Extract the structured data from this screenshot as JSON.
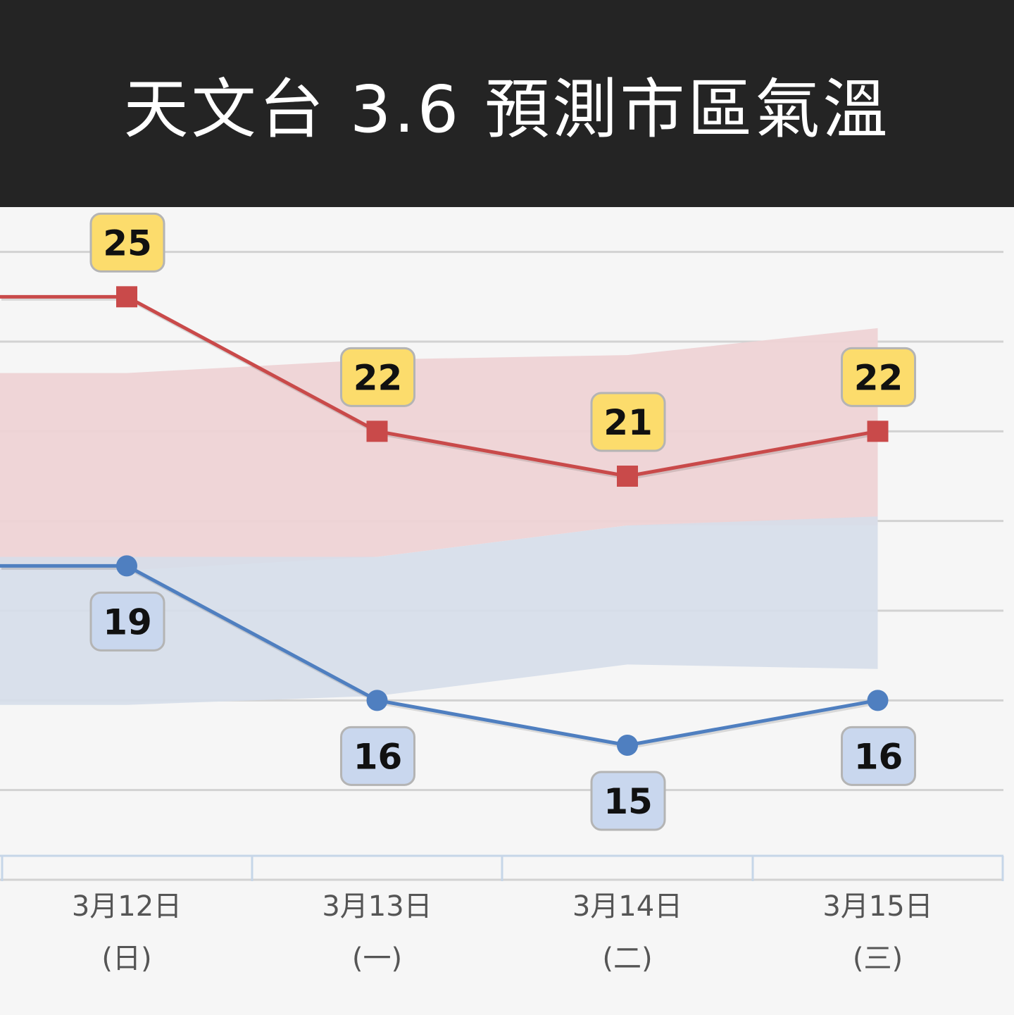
{
  "title": "天文台 3.6 預測市區氣溫",
  "colors": {
    "header_bg": "#242424",
    "max_line": "#c94a4a",
    "min_line": "#4f7fc0",
    "max_band": "#eed3d5",
    "min_band": "#d6deea",
    "max_label_bg": "#fcdc6c",
    "min_label_bg": "#c9d7ee"
  },
  "chart_data": {
    "type": "line",
    "categories": [
      "3月12日",
      "3月13日",
      "3月14日",
      "3月15日"
    ],
    "weekdays": [
      "(日)",
      "(一)",
      "(二)",
      "(三)"
    ],
    "series": [
      {
        "values": [
          25,
          22,
          21,
          22
        ],
        "marker": "square",
        "color": "#c94a4a"
      },
      {
        "values": [
          19,
          16,
          15,
          16
        ],
        "marker": "circle",
        "color": "#4f7fc0"
      }
    ],
    "bands": [
      {
        "upper": [
          23.3,
          23.6,
          23.7,
          24.3
        ],
        "lower": [
          18.9,
          19.2,
          19.9,
          19.9
        ]
      },
      {
        "upper": [
          19.2,
          19.2,
          19.9,
          20.1
        ],
        "lower": [
          15.9,
          16.1,
          16.8,
          16.7
        ]
      }
    ],
    "ylim": [
      12.55,
      27.0
    ],
    "gridlines": [
      26,
      24,
      22,
      20,
      18,
      16,
      14,
      12
    ],
    "grid": true,
    "legend": "none"
  }
}
